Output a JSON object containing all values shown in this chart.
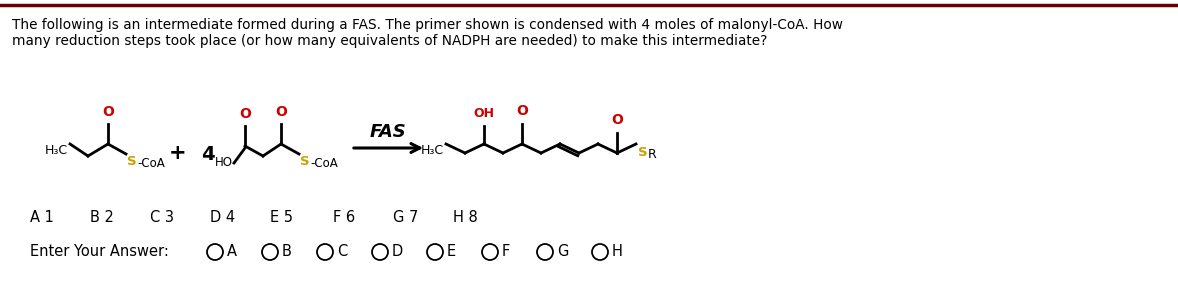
{
  "title_text1": "The following is an intermediate formed during a FAS. The primer shown is condensed with 4 moles of malonyl-CoA. How",
  "title_text2": "many reduction steps took place (or how many equivalents of NADPH are needed) to make this intermediate?",
  "background_color": "#ffffff",
  "text_color": "#000000",
  "red_color": "#cc0000",
  "yellow_color": "#c8a000",
  "dark_red_border": "#6b0000",
  "answer_labels": [
    "A 1",
    "B 2",
    "C 3",
    "D 4",
    "E 5",
    "F 6",
    "G 7",
    "H 8"
  ],
  "answer_choices": [
    "A",
    "B",
    "C",
    "D",
    "E",
    "F",
    "G",
    "H"
  ],
  "enter_answer": "Enter Your Answer:",
  "fig_width": 11.78,
  "fig_height": 2.98,
  "dpi": 100
}
